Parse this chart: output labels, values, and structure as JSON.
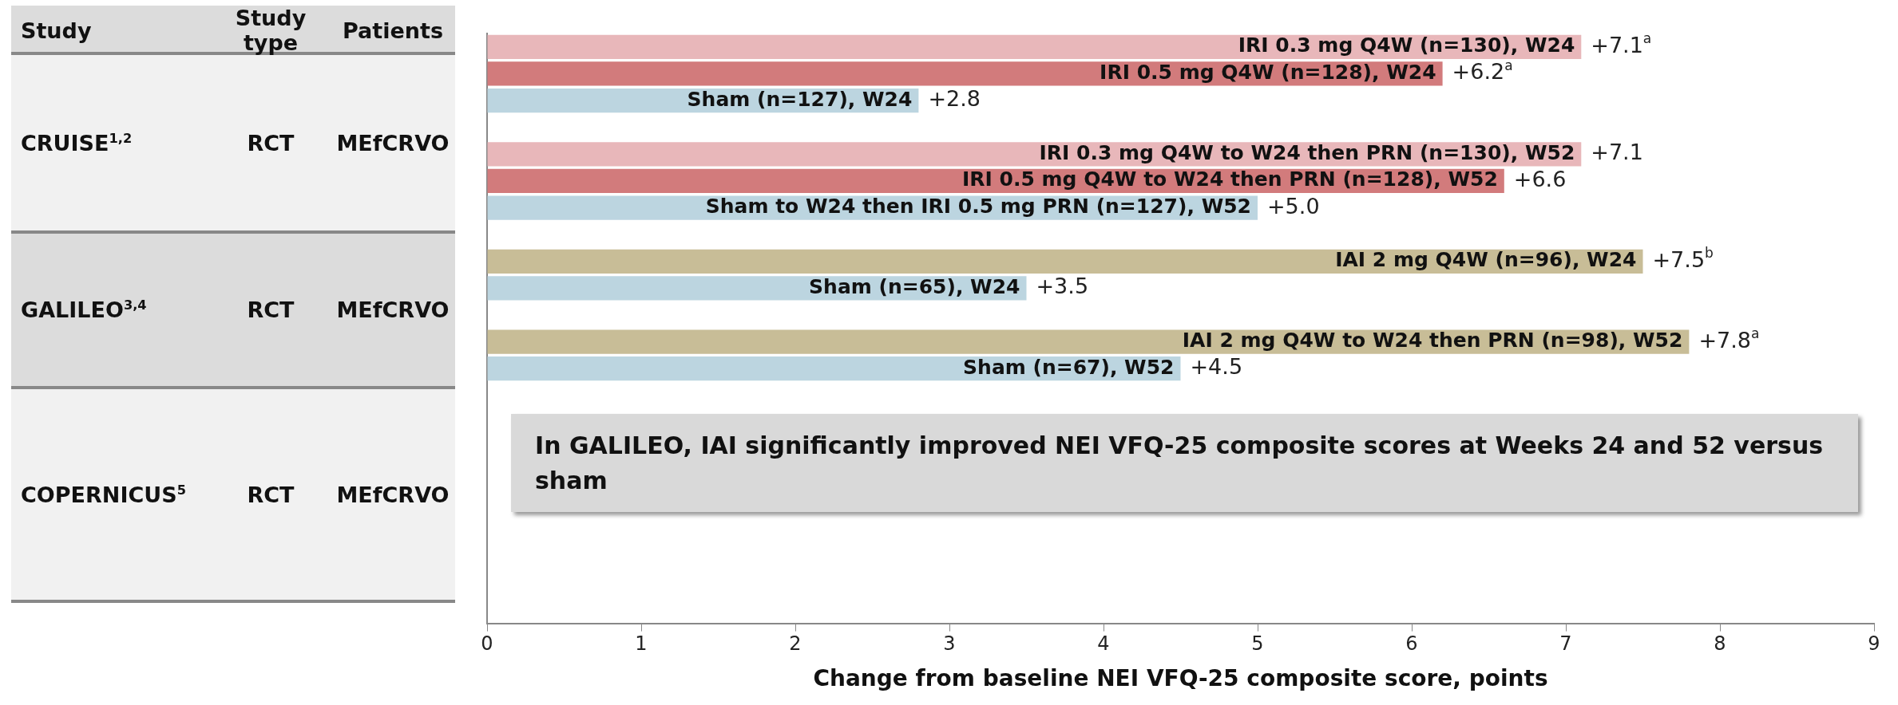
{
  "chart_data": [
    {
      "type": "other",
      "annotations": [
        "Study",
        "Study type",
        "Patients",
        "CRUISE$^{1,2}$",
        "RCT",
        "MEfCRVO",
        "GALILEO$^{3,4}$",
        "RCT",
        "MEfCRVO",
        "COPERNICUS$^{5}$",
        "RCT",
        "MEfCRVO"
      ]
    },
    {
      "type": "bar",
      "orientation": "horizontal",
      "xlabel": "Change from baseline NEI VFQ-25 composite score, points",
      "categories": [
        "IRI 0.3 mg Q4W (n=130), W24",
        "IRI 0.5 mg Q4W (n=128), W24",
        "Sham (n=127), W24",
        null,
        "IRI 0.3 mg Q4W to W24 then PRN (n=130), W52",
        "IRI 0.5 mg Q4W to W24 then PRN (n=128), W52",
        "Sham to W24 then IRI 0.5 mg PRN (n=127), W52",
        null,
        "IAI 2 mg Q4W (n=96), W24",
        "Sham (n=65), W24",
        null,
        "IAI 2 mg Q4W to W24 then PRN (n=98), W52",
        "Sham (n=67), W52",
        null,
        null,
        null,
        null,
        null,
        null,
        null,
        null,
        null
      ],
      "values": [
        7.1,
        6.2,
        2.8,
        null,
        7.1,
        6.6,
        5.0,
        null,
        7.5,
        3.5,
        null,
        7.8,
        4.5,
        null,
        null,
        null,
        null,
        null,
        null,
        null,
        null,
        null
      ],
      "value_labels": [
        "+7.1$^{a}$",
        "+6.2$^{a}$",
        "+2.8",
        null,
        "+7.1",
        "+6.6",
        "+5.0",
        null,
        "+7.5$^{b}$",
        "+3.5",
        null,
        "+7.8$^{a}$",
        "+4.5",
        null,
        null,
        null,
        null,
        null,
        null,
        null,
        null,
        null
      ],
      "colors": [
        "#e8b7ba",
        "#d27b7c",
        "#bcd5e0",
        null,
        "#e8b7ba",
        "#d27b7c",
        "#bcd5e0",
        null,
        "#c8bd97",
        "#bcd5e0",
        null,
        "#c8bd97",
        "#bcd5e0",
        null,
        null,
        null,
        null,
        null,
        null,
        null,
        null,
        null
      ],
      "xlim": [
        0,
        9
      ],
      "xticks": [
        0,
        1,
        2,
        3,
        4,
        5,
        6,
        7,
        8,
        9
      ],
      "annotations": [
        "In GALILEO, IAI significantly improved NEI VFQ-25 composite scores at Weeks 24 and 52 versus sham"
      ]
    }
  ]
}
